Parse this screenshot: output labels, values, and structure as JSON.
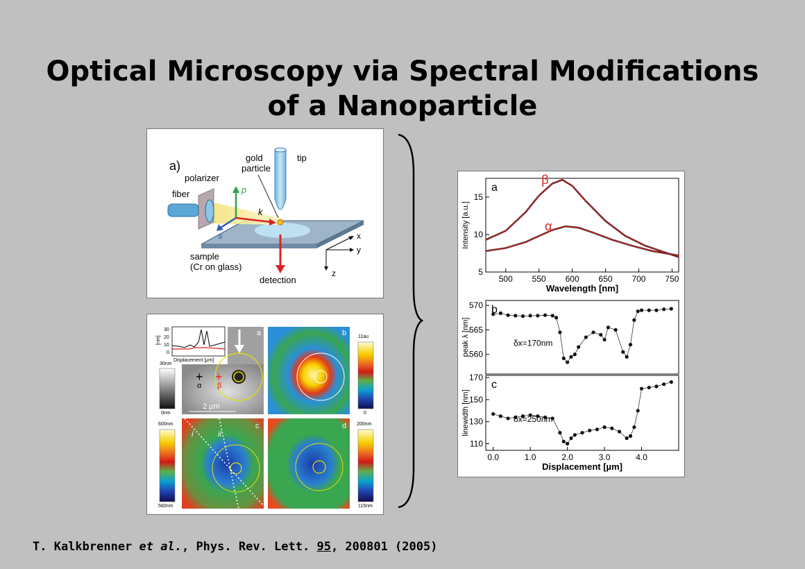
{
  "slide": {
    "title": "Optical Microscopy via Spectral Modifications of a Nanoparticle",
    "citation": {
      "authors": "T. Kalkbrenner",
      "etal": "et al.",
      "journal": ", Phys. Rev. Lett.",
      "volume": "95",
      "rest": ", 200801 (2005)"
    }
  },
  "setup_figure": {
    "panel_label": "a)",
    "labels": {
      "gold_1": "gold",
      "gold_2": "particle",
      "tip": "tip",
      "polarizer": "polarizer",
      "fiber": "fiber",
      "p": "p",
      "k": "k",
      "s": "s",
      "x": "x",
      "y": "y",
      "z": "z",
      "sample_1": "sample",
      "sample_2": "(Cr on glass)",
      "detection": "detection"
    }
  },
  "maps_figure": {
    "panels": [
      "a",
      "b",
      "c",
      "d"
    ],
    "inset_y_unit": "[nm]",
    "inset_y_ticks": [
      "30",
      "20",
      "10",
      "0"
    ],
    "inset_x_label": "Displacement [µm]",
    "markers": {
      "alpha": "α",
      "beta": "β",
      "plus": "+"
    },
    "scale_bar": "2 µm",
    "lines": {
      "i": "i",
      "ii": "ii"
    },
    "colorbars": {
      "a": {
        "top": "30nm",
        "bottom": "0nm"
      },
      "b": {
        "top": "11au",
        "bottom": "0"
      },
      "c": {
        "top": "600nm",
        "bottom": "560nm"
      },
      "d": {
        "top": "200nm",
        "bottom": "115nm"
      }
    }
  },
  "chart_data": [
    {
      "type": "line",
      "panel": "a",
      "xlabel": "Wavelength [nm]",
      "ylabel": "Intensity [a.u.]",
      "xlim": [
        470,
        760
      ],
      "ylim": [
        5,
        17.5
      ],
      "xticks": [
        500,
        550,
        600,
        650,
        700,
        750
      ],
      "yticks": [
        5,
        10,
        15
      ],
      "series": [
        {
          "name": "β",
          "x": [
            470,
            500,
            530,
            550,
            570,
            585,
            600,
            620,
            650,
            680,
            710,
            740,
            760
          ],
          "y": [
            9.3,
            10.5,
            13.0,
            15.2,
            16.8,
            17.3,
            16.5,
            14.5,
            11.8,
            9.8,
            8.5,
            7.6,
            7.0
          ]
        },
        {
          "name": "α",
          "x": [
            470,
            500,
            530,
            550,
            570,
            590,
            610,
            630,
            660,
            690,
            720,
            760
          ],
          "y": [
            7.8,
            8.2,
            9.0,
            9.8,
            10.6,
            11.1,
            10.9,
            10.3,
            9.3,
            8.5,
            7.8,
            7.2
          ]
        }
      ]
    },
    {
      "type": "scatter",
      "panel": "b",
      "xlabel": "",
      "ylabel": "peak λ [nm]",
      "xlim": [
        -0.2,
        5.0
      ],
      "ylim": [
        556,
        571
      ],
      "yticks": [
        560,
        565,
        570
      ],
      "annotation": "δx=170nm",
      "series": [
        {
          "x": [
            0.0,
            0.2,
            0.4,
            0.6,
            0.8,
            1.0,
            1.2,
            1.4,
            1.6,
            1.7,
            1.8,
            1.9,
            2.0,
            2.1,
            2.2,
            2.3,
            2.5,
            2.7,
            2.9,
            3.0,
            3.1,
            3.3,
            3.5,
            3.6,
            3.7,
            3.8,
            3.9,
            4.0,
            4.2,
            4.4,
            4.6,
            4.8
          ],
          "y": [
            568.2,
            568.4,
            568.0,
            567.9,
            567.8,
            567.9,
            567.9,
            568.0,
            567.9,
            567.5,
            564.5,
            559.2,
            558.4,
            559.5,
            560.0,
            561.5,
            563.5,
            564.5,
            564.0,
            563.0,
            565.5,
            565.0,
            560.5,
            559.5,
            562.0,
            567.0,
            568.8,
            569.0,
            569.0,
            569.0,
            569.2,
            569.3
          ]
        }
      ]
    },
    {
      "type": "scatter",
      "panel": "c",
      "xlabel": "Displacement [µm]",
      "ylabel": "linewidth [nm]",
      "xlim": [
        -0.2,
        5.0
      ],
      "ylim": [
        104,
        172
      ],
      "xticks": [
        0.0,
        1.0,
        2.0,
        3.0,
        4.0
      ],
      "yticks": [
        110,
        130,
        150,
        170
      ],
      "annotation": "δx=250nm",
      "series": [
        {
          "x": [
            0.0,
            0.2,
            0.4,
            0.6,
            0.8,
            1.0,
            1.2,
            1.4,
            1.6,
            1.8,
            1.9,
            2.0,
            2.1,
            2.2,
            2.4,
            2.6,
            2.8,
            3.0,
            3.2,
            3.4,
            3.6,
            3.7,
            3.8,
            3.9,
            4.0,
            4.2,
            4.4,
            4.6,
            4.8
          ],
          "y": [
            137,
            135,
            133,
            134,
            135,
            136,
            135,
            134,
            133,
            120,
            112,
            110,
            115,
            118,
            120,
            122,
            123,
            125,
            124,
            121,
            115,
            117,
            125,
            140,
            160,
            161,
            162,
            164,
            166
          ]
        }
      ]
    }
  ]
}
